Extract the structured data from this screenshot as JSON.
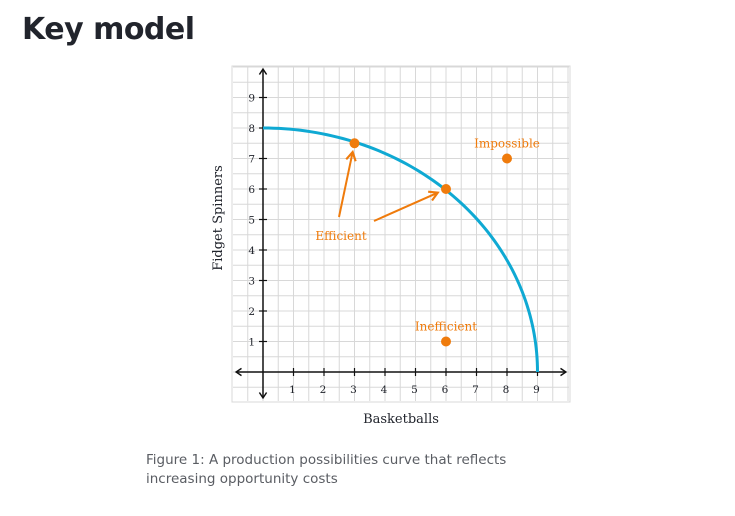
{
  "page": {
    "heading": "Key model",
    "caption": "Figure 1: A production possibilities curve that reflects increasing opportunity costs"
  },
  "colors": {
    "curve": "#0fa9d3",
    "points": "#ef7b0c",
    "axes": "#111111",
    "grid": "#d8d8d8"
  },
  "chart_data": {
    "type": "line",
    "title": "",
    "xlabel": "Basketballs",
    "ylabel": "Fidget Spinners",
    "xlim": [
      0,
      10
    ],
    "ylim": [
      0,
      10
    ],
    "x_ticks": [
      1,
      2,
      3,
      4,
      5,
      6,
      7,
      8,
      9
    ],
    "y_ticks": [
      1,
      2,
      3,
      4,
      5,
      6,
      7,
      8,
      9
    ],
    "grid": true,
    "curve": {
      "description": "Production possibilities frontier (quarter ellipse)",
      "x_intercept": 9,
      "y_intercept": 8,
      "passes_through": [
        [
          3,
          7.5
        ],
        [
          6,
          6
        ]
      ]
    },
    "points": [
      {
        "x": 3,
        "y": 7.5,
        "label": ""
      },
      {
        "x": 6,
        "y": 6,
        "label": ""
      },
      {
        "x": 8,
        "y": 7,
        "label": "Impossible"
      },
      {
        "x": 6,
        "y": 1,
        "label": "Inefficient"
      }
    ],
    "annotations": [
      {
        "text": "Efficient",
        "points_to": [
          [
            3,
            7.5
          ],
          [
            6,
            6
          ]
        ]
      }
    ]
  }
}
